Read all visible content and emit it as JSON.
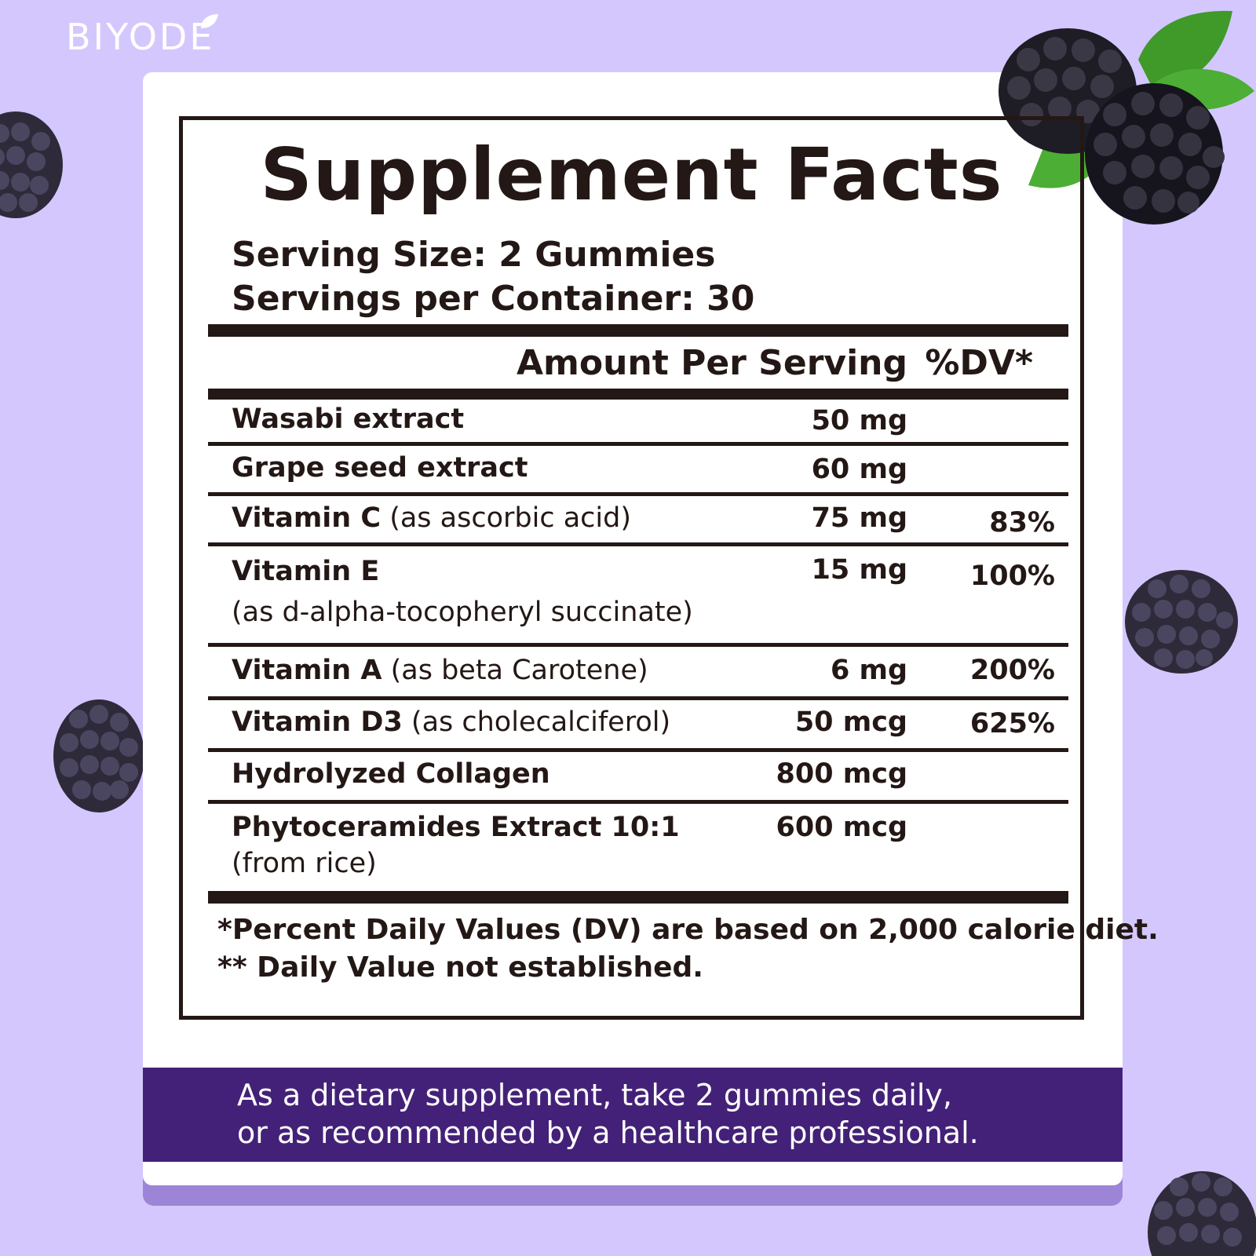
{
  "brand": {
    "name": "BIYODE"
  },
  "facts": {
    "title": "Supplement Facts",
    "serving_size": "Serving Size: 2 Gummies",
    "servings_per_container": "Servings per Container: 30",
    "header_amount": "Amount Per Serving",
    "header_dv": "%DV*",
    "rows": [
      {
        "name": "Wasabi extract",
        "detail": "",
        "detail2": "",
        "amount": "50 mg",
        "dv": ""
      },
      {
        "name": "Grape seed extract",
        "detail": "",
        "detail2": "",
        "amount": "60 mg",
        "dv": ""
      },
      {
        "name": "Vitamin C",
        "detail": " (as ascorbic acid)",
        "detail2": "",
        "amount": "75 mg",
        "dv": "83%"
      },
      {
        "name": "Vitamin E",
        "detail": "",
        "detail2": "(as d-alpha-tocopheryl succinate)",
        "amount": "15 mg",
        "dv": "100%"
      },
      {
        "name": "Vitamin A",
        "detail": " (as beta Carotene)",
        "detail2": "",
        "amount": "6 mg",
        "dv": "200%"
      },
      {
        "name": "Vitamin D3",
        "detail": " (as cholecalciferol)",
        "detail2": "",
        "amount": "50 mcg",
        "dv": "625%"
      },
      {
        "name": "Hydrolyzed Collagen",
        "detail": "",
        "detail2": "",
        "amount": "800 mcg",
        "dv": ""
      },
      {
        "name": "Phytoceramides Extract 10:1",
        "detail": "",
        "detail2": "(from rice)",
        "amount": "600 mcg",
        "dv": ""
      }
    ],
    "footnote_1": "*Percent Daily Values (DV) are based on 2,000 calorie diet.",
    "footnote_2": "** Daily Value not established."
  },
  "directions": {
    "line_1": "As a dietary supplement, take 2 gummies daily,",
    "line_2": "or as recommended by a healthcare professional."
  },
  "colors": {
    "background": "#d4c7fd",
    "banner": "#442178",
    "text": "#231815"
  },
  "decorations": [
    "blackberry-icon",
    "leaf-icon"
  ]
}
